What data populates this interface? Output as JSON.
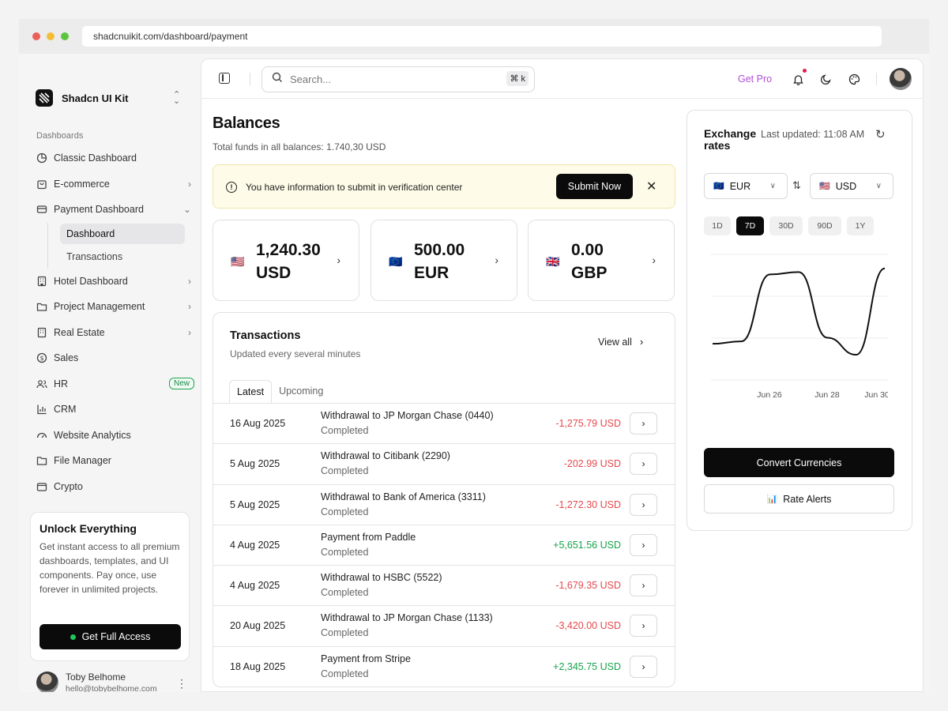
{
  "browser": {
    "url": "shadcnuikit.com/dashboard/payment"
  },
  "sidebar": {
    "brand": "Shadcn UI Kit",
    "section_label": "Dashboards",
    "items": [
      {
        "label": "Classic Dashboard",
        "icon": "pie-chart-icon"
      },
      {
        "label": "E-commerce",
        "icon": "shopping-bag-icon"
      },
      {
        "label": "Payment Dashboard",
        "icon": "credit-card-icon"
      },
      {
        "label": "Hotel Dashboard",
        "icon": "building-icon"
      },
      {
        "label": "Project Management",
        "icon": "folder-kanban-icon"
      },
      {
        "label": "Real Estate",
        "icon": "building-icon"
      },
      {
        "label": "Sales",
        "icon": "dollar-circle-icon"
      },
      {
        "label": "HR",
        "icon": "users-icon",
        "badge": "New"
      },
      {
        "label": "CRM",
        "icon": "chart-bars-icon"
      },
      {
        "label": "Website Analytics",
        "icon": "gauge-icon"
      },
      {
        "label": "File Manager",
        "icon": "folder-icon"
      },
      {
        "label": "Crypto",
        "icon": "wallet-icon"
      }
    ],
    "sub_items": [
      "Dashboard",
      "Transactions"
    ],
    "promo": {
      "title": "Unlock Everything",
      "text": "Get instant access to all premium dashboards, templates, and UI components. Pay once, use forever in unlimited projects.",
      "button": "Get Full Access"
    },
    "user": {
      "name": "Toby Belhome",
      "email": "hello@tobybelhome.com"
    }
  },
  "topbar": {
    "search_placeholder": "Search...",
    "shortcut": "⌘ k",
    "get_pro": "Get Pro"
  },
  "page": {
    "title": "Balances",
    "subtitle": "Total funds in all balances: 1.740,30 USD"
  },
  "alert": {
    "text": "You have information to submit in verification center",
    "button": "Submit Now"
  },
  "balances": [
    {
      "flag": "🇺🇸",
      "line1": "1,240.30",
      "line2": "USD"
    },
    {
      "flag": "🇪🇺",
      "line1": "500.00",
      "line2": "EUR"
    },
    {
      "flag": "🇬🇧",
      "line1": "0.00",
      "line2": "GBP"
    }
  ],
  "transactions": {
    "title": "Transactions",
    "subtitle": "Updated every several minutes",
    "view_all": "View all",
    "tabs": [
      "Latest",
      "Upcoming"
    ],
    "rows": [
      {
        "date": "16 Aug 2025",
        "desc": "Withdrawal to JP Morgan Chase (0440)",
        "status": "Completed",
        "amount": "-1,275.79 USD",
        "type": "neg"
      },
      {
        "date": "5 Aug 2025",
        "desc": "Withdrawal to Citibank (2290)",
        "status": "Completed",
        "amount": "-202.99 USD",
        "type": "neg"
      },
      {
        "date": "5 Aug 2025",
        "desc": "Withdrawal to Bank of America (3311)",
        "status": "Completed",
        "amount": "-1,272.30 USD",
        "type": "neg"
      },
      {
        "date": "4 Aug 2025",
        "desc": "Payment from Paddle",
        "status": "Completed",
        "amount": "+5,651.56 USD",
        "type": "pos"
      },
      {
        "date": "4 Aug 2025",
        "desc": "Withdrawal to HSBC (5522)",
        "status": "Completed",
        "amount": "-1,679.35 USD",
        "type": "neg"
      },
      {
        "date": "20 Aug 2025",
        "desc": "Withdrawal to JP Morgan Chase (1133)",
        "status": "Completed",
        "amount": "-3,420.00 USD",
        "type": "neg"
      },
      {
        "date": "18 Aug 2025",
        "desc": "Payment from Stripe",
        "status": "Completed",
        "amount": "+2,345.75 USD",
        "type": "pos"
      }
    ]
  },
  "exchange": {
    "title": "Exchange rates",
    "updated": "Last updated: 11:08 AM",
    "from": {
      "flag": "🇪🇺",
      "code": "EUR"
    },
    "to": {
      "flag": "🇺🇸",
      "code": "USD"
    },
    "ranges": [
      "1D",
      "7D",
      "30D",
      "90D",
      "1Y"
    ],
    "active_range": "7D",
    "convert_button": "Convert Currencies",
    "alerts_button": "Rate Alerts",
    "alerts_icon": "📊"
  },
  "chart_data": {
    "type": "line",
    "x_ticks": [
      "Jun 26",
      "Jun 28",
      "Jun 30"
    ],
    "series": [
      {
        "values": [
          0.33,
          0.35,
          0.9,
          0.92,
          0.38,
          0.24,
          0.95
        ]
      }
    ],
    "grid": true,
    "legend": "none"
  }
}
